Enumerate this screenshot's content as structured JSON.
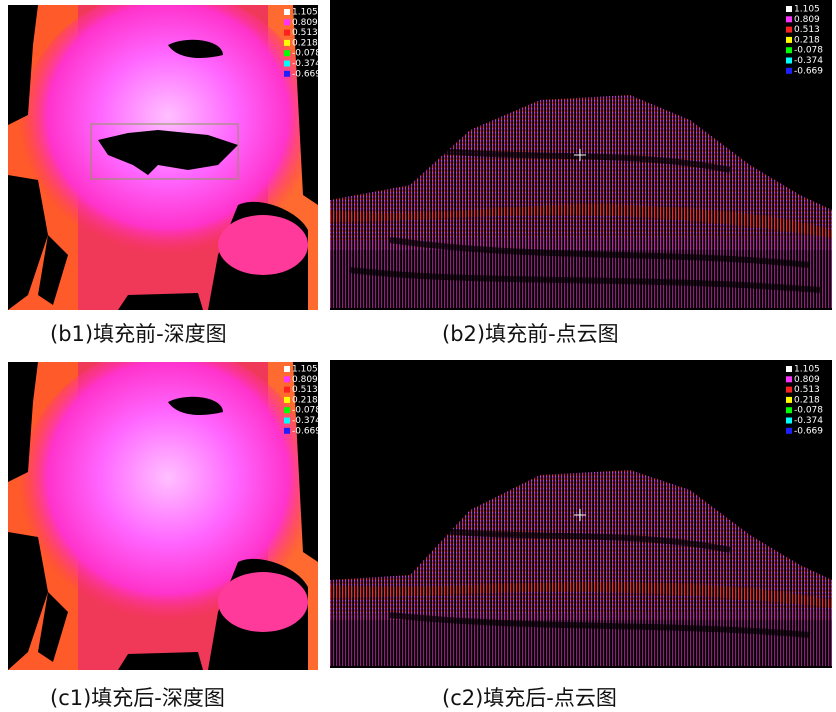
{
  "legend": {
    "labels": [
      "1.105",
      "0.809",
      "0.513",
      "0.218",
      "-0.078",
      "-0.374",
      "-0.669"
    ],
    "colors": [
      "#ffffff",
      "#ff33ff",
      "#ff2020",
      "#ffff00",
      "#00ff00",
      "#00ffff",
      "#2020ff"
    ]
  },
  "panels": [
    {
      "caption": "(b1)填充前-深度图"
    },
    {
      "caption": "(b2)填充前-点云图"
    },
    {
      "caption": "(c1)填充后-深度图"
    },
    {
      "caption": "(c2)填充后-点云图"
    }
  ]
}
